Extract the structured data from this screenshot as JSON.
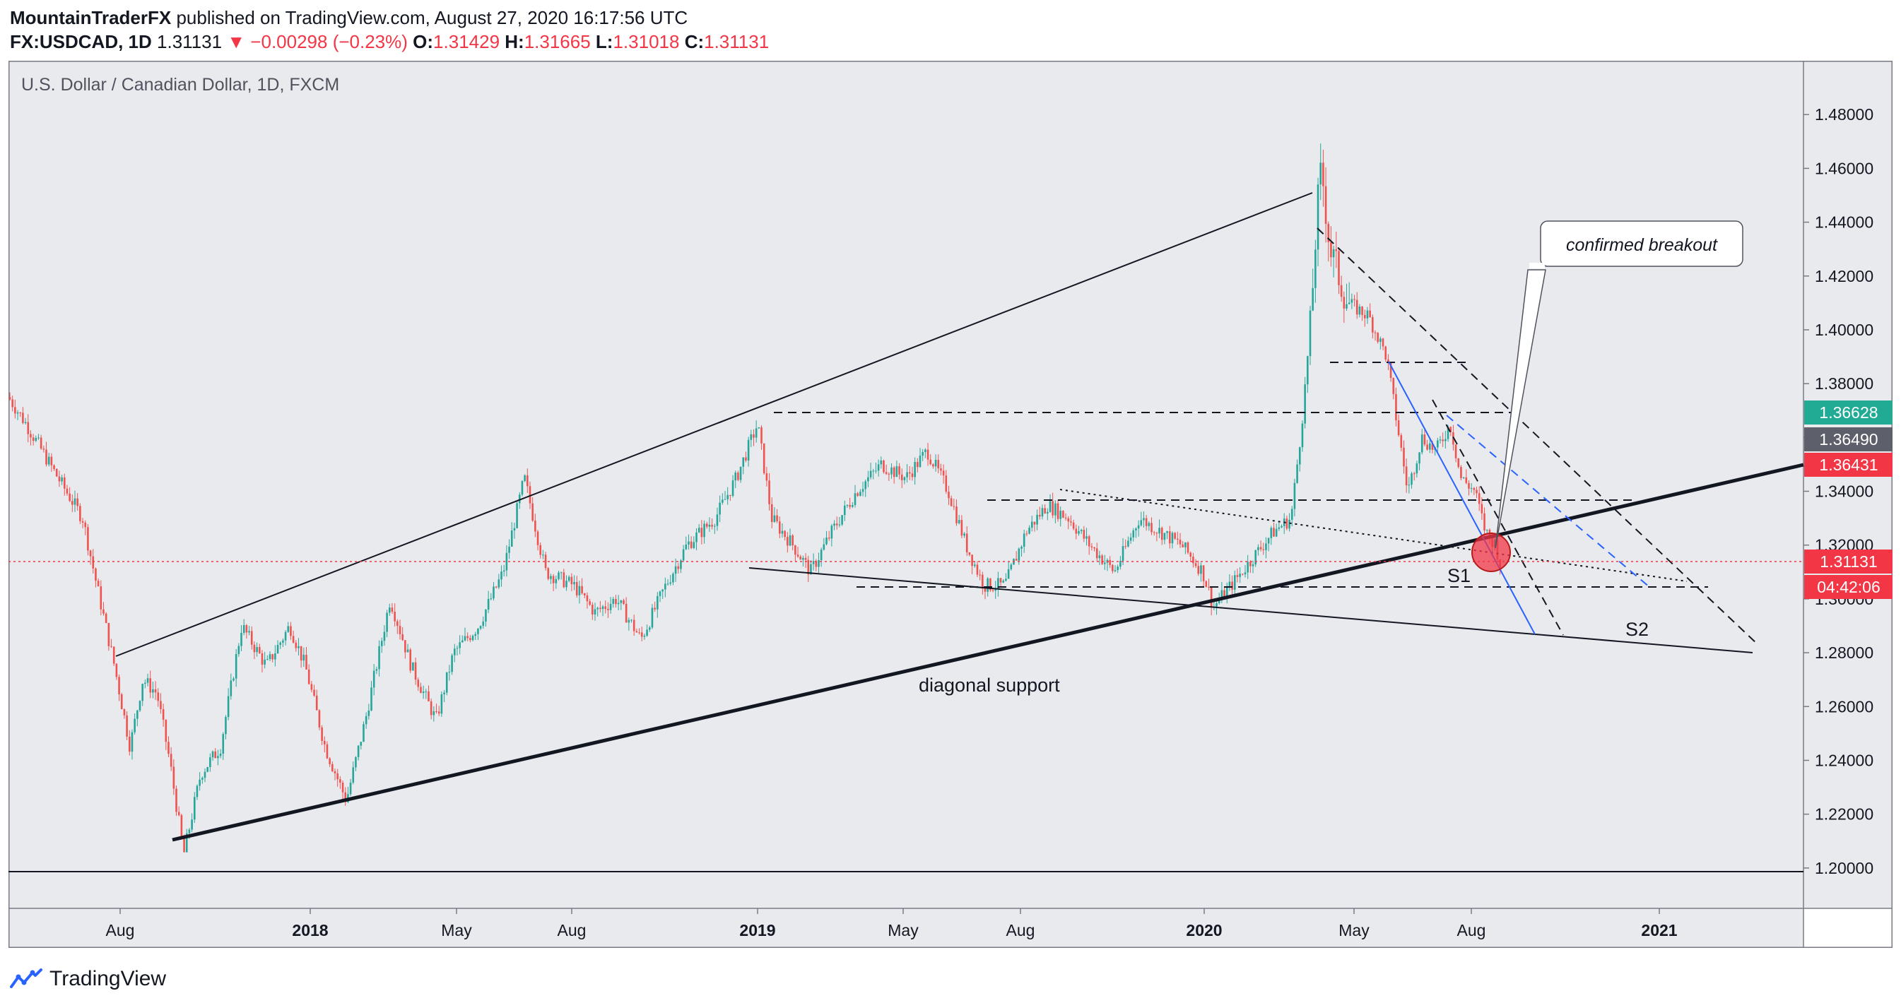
{
  "header": {
    "author": "MountainTraderFX",
    "published_text": " published on TradingView.com, August 27, 2020 16:17:56 UTC",
    "symbol": "FX:USDCAD, 1D",
    "last": "1.31131",
    "change": "−0.00298 (−0.23%)",
    "o_label": "O:",
    "o_val": "1.31429",
    "h_label": "H:",
    "h_val": "1.31665",
    "l_label": "L:",
    "l_val": "1.31018",
    "c_label": "C:",
    "c_val": "1.31131"
  },
  "footer": {
    "brand": "TradingView"
  },
  "colors": {
    "up": "#26a69a",
    "down": "#ef5350",
    "blue_line": "#2962ff",
    "bg": "#e9eaee"
  },
  "chart_data": {
    "type": "candlestick",
    "title": "U.S. Dollar / Canadian Dollar, 1D, FXCM",
    "ylim": [
      1.185,
      1.5
    ],
    "y_ticks": [
      "1.48000",
      "1.46000",
      "1.44000",
      "1.42000",
      "1.40000",
      "1.38000",
      "1.36000",
      "1.34000",
      "1.32000",
      "1.30000",
      "1.28000",
      "1.26000",
      "1.24000",
      "1.22000",
      "1.20000"
    ],
    "x_ticks": [
      "Aug",
      "2018",
      "May",
      "Aug",
      "2019",
      "May",
      "Aug",
      "2020",
      "May",
      "Aug",
      "2021"
    ],
    "x_tick_bold": [
      false,
      true,
      false,
      false,
      true,
      false,
      false,
      true,
      false,
      false,
      true
    ],
    "price_path": [
      [
        0,
        1.375
      ],
      [
        25,
        1.365
      ],
      [
        70,
        1.345
      ],
      [
        105,
        1.33
      ],
      [
        125,
        1.305
      ],
      [
        150,
        1.275
      ],
      [
        172,
        1.245
      ],
      [
        190,
        1.27
      ],
      [
        210,
        1.265
      ],
      [
        228,
        1.24
      ],
      [
        248,
        1.205
      ],
      [
        272,
        1.235
      ],
      [
        300,
        1.245
      ],
      [
        330,
        1.29
      ],
      [
        365,
        1.275
      ],
      [
        398,
        1.29
      ],
      [
        420,
        1.275
      ],
      [
        448,
        1.245
      ],
      [
        478,
        1.225
      ],
      [
        505,
        1.255
      ],
      [
        540,
        1.3
      ],
      [
        570,
        1.275
      ],
      [
        605,
        1.255
      ],
      [
        630,
        1.28
      ],
      [
        665,
        1.29
      ],
      [
        700,
        1.31
      ],
      [
        730,
        1.345
      ],
      [
        760,
        1.31
      ],
      [
        800,
        1.305
      ],
      [
        830,
        1.295
      ],
      [
        860,
        1.3
      ],
      [
        895,
        1.285
      ],
      [
        930,
        1.305
      ],
      [
        960,
        1.32
      ],
      [
        1000,
        1.33
      ],
      [
        1030,
        1.345
      ],
      [
        1060,
        1.365
      ],
      [
        1080,
        1.33
      ],
      [
        1110,
        1.32
      ],
      [
        1135,
        1.31
      ],
      [
        1165,
        1.325
      ],
      [
        1200,
        1.34
      ],
      [
        1235,
        1.35
      ],
      [
        1270,
        1.345
      ],
      [
        1300,
        1.355
      ],
      [
        1330,
        1.34
      ],
      [
        1355,
        1.32
      ],
      [
        1380,
        1.305
      ],
      [
        1410,
        1.305
      ],
      [
        1440,
        1.325
      ],
      [
        1470,
        1.335
      ],
      [
        1500,
        1.33
      ],
      [
        1530,
        1.32
      ],
      [
        1565,
        1.31
      ],
      [
        1600,
        1.33
      ],
      [
        1630,
        1.325
      ],
      [
        1660,
        1.32
      ],
      [
        1690,
        1.31
      ],
      [
        1705,
        1.297
      ],
      [
        1730,
        1.305
      ],
      [
        1760,
        1.315
      ],
      [
        1790,
        1.325
      ],
      [
        1815,
        1.33
      ],
      [
        1830,
        1.365
      ],
      [
        1842,
        1.4
      ],
      [
        1852,
        1.445
      ],
      [
        1858,
        1.46
      ],
      [
        1870,
        1.43
      ],
      [
        1895,
        1.41
      ],
      [
        1925,
        1.405
      ],
      [
        1950,
        1.39
      ],
      [
        1965,
        1.365
      ],
      [
        1980,
        1.34
      ],
      [
        2000,
        1.36
      ],
      [
        2020,
        1.355
      ],
      [
        2040,
        1.365
      ],
      [
        2055,
        1.345
      ],
      [
        2075,
        1.34
      ],
      [
        2090,
        1.325
      ],
      [
        2105,
        1.32
      ],
      [
        2112,
        1.311
      ]
    ],
    "labels": {
      "confirmed_breakout": "confirmed breakout",
      "diagonal_support": "diagonal support",
      "s1": "S1",
      "s2": "S2"
    },
    "price_tags": [
      {
        "value": "1.36628",
        "color": "#22ab94"
      },
      {
        "value": "1.36490",
        "color": "#5d606b"
      },
      {
        "value": "1.36431",
        "color": "#f23645"
      },
      {
        "value": "1.31131",
        "color": "#f23645"
      },
      {
        "value": "04:42:06",
        "color": "#f23645"
      }
    ]
  }
}
